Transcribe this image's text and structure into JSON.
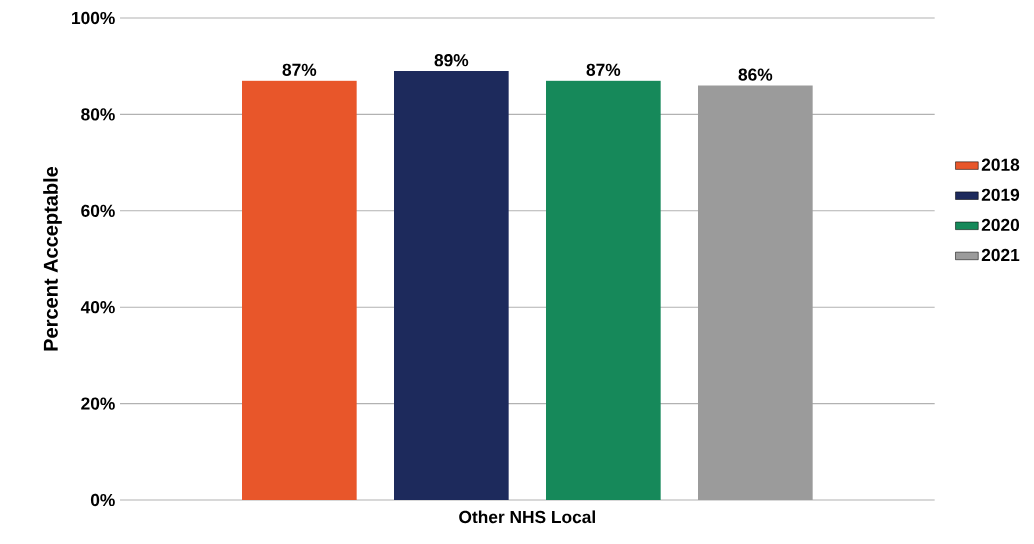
{
  "chart_data": {
    "type": "bar",
    "ylabel": "Percent Acceptable",
    "categories": [
      "Other NHS Local"
    ],
    "series": [
      {
        "name": "2018",
        "color": "#e8562a",
        "values": [
          87
        ],
        "value_labels": [
          "87%"
        ]
      },
      {
        "name": "2019",
        "color": "#1d2a5c",
        "values": [
          89
        ],
        "value_labels": [
          "89%"
        ]
      },
      {
        "name": "2020",
        "color": "#16895a",
        "values": [
          87
        ],
        "value_labels": [
          "87%"
        ]
      },
      {
        "name": "2021",
        "color": "#9b9b9b",
        "values": [
          86
        ],
        "value_labels": [
          "86%"
        ]
      }
    ],
    "ylim": [
      0,
      100
    ],
    "yticks": [
      {
        "value": 0,
        "label": "0%"
      },
      {
        "value": 20,
        "label": "20%"
      },
      {
        "value": 40,
        "label": "40%"
      },
      {
        "value": 60,
        "label": "60%"
      },
      {
        "value": 80,
        "label": "80%"
      },
      {
        "value": 100,
        "label": "100%"
      }
    ],
    "grid": "y",
    "legend": "right"
  }
}
